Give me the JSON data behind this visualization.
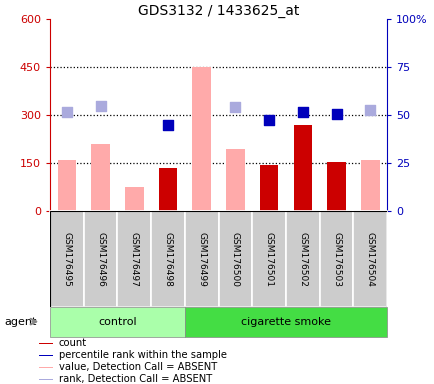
{
  "title": "GDS3132 / 1433625_at",
  "samples": [
    "GSM176495",
    "GSM176496",
    "GSM176497",
    "GSM176498",
    "GSM176499",
    "GSM176500",
    "GSM176501",
    "GSM176502",
    "GSM176503",
    "GSM176504"
  ],
  "n_control": 4,
  "value_absent": [
    160,
    210,
    75,
    null,
    450,
    195,
    null,
    null,
    null,
    160
  ],
  "rank_absent": [
    310,
    330,
    null,
    null,
    null,
    325,
    null,
    null,
    null,
    315
  ],
  "count": [
    null,
    null,
    null,
    135,
    null,
    null,
    145,
    270,
    155,
    null
  ],
  "percentile_rank_left": [
    null,
    null,
    null,
    270,
    null,
    null,
    285,
    310,
    305,
    null
  ],
  "ylim_left": [
    0,
    600
  ],
  "ylim_right": [
    0,
    100
  ],
  "yticks_left": [
    0,
    150,
    300,
    450,
    600
  ],
  "ytick_labels_left": [
    "0",
    "150",
    "300",
    "450",
    "600"
  ],
  "ytick_labels_right": [
    "0",
    "25",
    "50",
    "75",
    "100%"
  ],
  "hline_values": [
    150,
    300,
    450
  ],
  "bar_color_count": "#cc0000",
  "bar_color_value_absent": "#ffaaaa",
  "dot_color_percentile": "#0000bb",
  "dot_color_rank_absent": "#aaaadd",
  "left_tick_color": "#cc0000",
  "right_tick_color": "#0000bb",
  "control_color": "#aaffaa",
  "smoke_color": "#44dd44",
  "label_count": "count",
  "label_percentile": "percentile rank within the sample",
  "label_value_absent": "value, Detection Call = ABSENT",
  "label_rank_absent": "rank, Detection Call = ABSENT",
  "bar_width": 0.55,
  "dot_size": 45
}
